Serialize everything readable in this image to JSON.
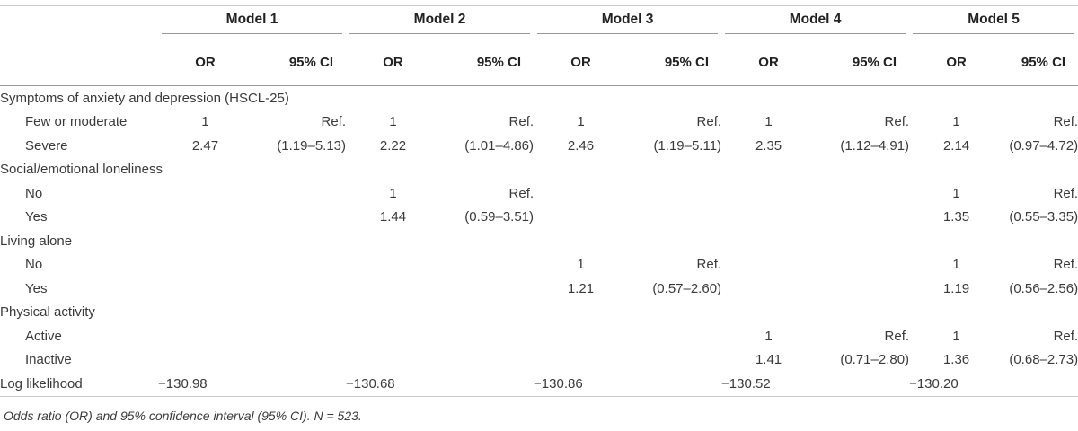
{
  "models": [
    "Model 1",
    "Model 2",
    "Model 3",
    "Model 4",
    "Model 5"
  ],
  "col_or": "OR",
  "col_ci": "95% CI",
  "rows": [
    {
      "label": "Symptoms of anxiety and depression (HSCL-25)",
      "type": "section"
    },
    {
      "label": "Few or moderate",
      "type": "item",
      "cells": [
        [
          "1",
          "Ref."
        ],
        [
          "1",
          "Ref."
        ],
        [
          "1",
          "Ref."
        ],
        [
          "1",
          "Ref."
        ],
        [
          "1",
          "Ref."
        ]
      ]
    },
    {
      "label": "Severe",
      "type": "item",
      "cells": [
        [
          "2.47",
          "(1.19–5.13)"
        ],
        [
          "2.22",
          "(1.01–4.86)"
        ],
        [
          "2.46",
          "(1.19–5.11)"
        ],
        [
          "2.35",
          "(1.12–4.91)"
        ],
        [
          "2.14",
          "(0.97–4.72)"
        ]
      ]
    },
    {
      "label": "Social/emotional loneliness",
      "type": "section"
    },
    {
      "label": "No",
      "type": "item",
      "cells": [
        [
          "",
          ""
        ],
        [
          "1",
          "Ref."
        ],
        [
          "",
          ""
        ],
        [
          "",
          ""
        ],
        [
          "1",
          "Ref."
        ]
      ]
    },
    {
      "label": "Yes",
      "type": "item",
      "cells": [
        [
          "",
          ""
        ],
        [
          "1.44",
          "(0.59–3.51)"
        ],
        [
          "",
          ""
        ],
        [
          "",
          ""
        ],
        [
          "1.35",
          "(0.55–3.35)"
        ]
      ]
    },
    {
      "label": "Living alone",
      "type": "section"
    },
    {
      "label": "No",
      "type": "item",
      "cells": [
        [
          "",
          ""
        ],
        [
          "",
          ""
        ],
        [
          "1",
          "Ref."
        ],
        [
          "",
          ""
        ],
        [
          "1",
          "Ref."
        ]
      ]
    },
    {
      "label": "Yes",
      "type": "item",
      "cells": [
        [
          "",
          ""
        ],
        [
          "",
          ""
        ],
        [
          "1.21",
          "(0.57–2.60)"
        ],
        [
          "",
          ""
        ],
        [
          "1.19",
          "(0.56–2.56)"
        ]
      ]
    },
    {
      "label": "Physical activity",
      "type": "section"
    },
    {
      "label": "Active",
      "type": "item",
      "cells": [
        [
          "",
          ""
        ],
        [
          "",
          ""
        ],
        [
          "",
          ""
        ],
        [
          "1",
          "Ref."
        ],
        [
          "1",
          "Ref."
        ]
      ]
    },
    {
      "label": "Inactive",
      "type": "item",
      "cells": [
        [
          "",
          ""
        ],
        [
          "",
          ""
        ],
        [
          "",
          ""
        ],
        [
          "1.41",
          "(0.71–2.80)"
        ],
        [
          "1.36",
          "(0.68–2.73)"
        ]
      ]
    },
    {
      "label": "Log likelihood",
      "type": "ll",
      "values": [
        "−130.98",
        "−130.68",
        "−130.86",
        "−130.52",
        "−130.20"
      ]
    }
  ],
  "footnote": "Odds ratio (OR) and 95% confidence interval (95% CI). N = 523."
}
